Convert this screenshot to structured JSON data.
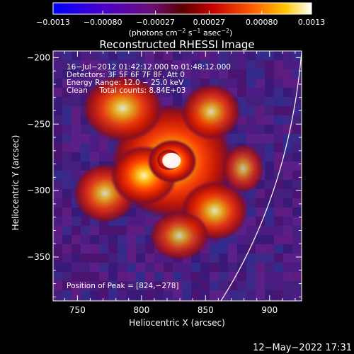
{
  "chart_data": {
    "type": "heatmap",
    "title": "Reconstructed RHESSI Image",
    "xlabel": "Heliocentric X (arcsec)",
    "ylabel": "Heliocentric Y (arcsec)",
    "xlim": [
      731,
      925
    ],
    "ylim": [
      -383,
      -195
    ],
    "xticks": [
      750,
      800,
      850,
      900
    ],
    "xtick_labels": [
      "750",
      "800",
      "850",
      "900"
    ],
    "yticks": [
      -200,
      -250,
      -300,
      -350
    ],
    "ytick_labels": [
      "−200",
      "−250",
      "−300",
      "−350"
    ],
    "colorbar": {
      "range": [
        -0.0013,
        0.0013
      ],
      "ticks": [
        -0.0013,
        -0.0008,
        -0.00027,
        0.00027,
        0.0008,
        0.0013
      ],
      "tick_labels": [
        "−0.0013",
        "−0.00080",
        "−0.00027",
        "0.00027",
        "0.00080",
        "0.0013"
      ],
      "unit_parts": [
        "(photons cm",
        "−2",
        " s",
        "−1",
        " asec",
        "−2",
        ")"
      ]
    },
    "annotations": [
      "16−Jul−2012 01:42:12.000 to 01:48:12.000",
      "Detectors: 3F 5F 6F 7F 8F, Att 0",
      "Energy Range: 12.0 − 25.0 keV",
      "Clean     Total counts: 8.84E+03"
    ],
    "peak_label": "Position of Peak = [824,−278]",
    "peak": {
      "x": 824,
      "y": -278
    },
    "limb_arc": [
      [
        925,
        -196
      ],
      [
        862,
        -383
      ]
    ]
  },
  "footer": {
    "timestamp": "12−May−2022 17:31"
  }
}
